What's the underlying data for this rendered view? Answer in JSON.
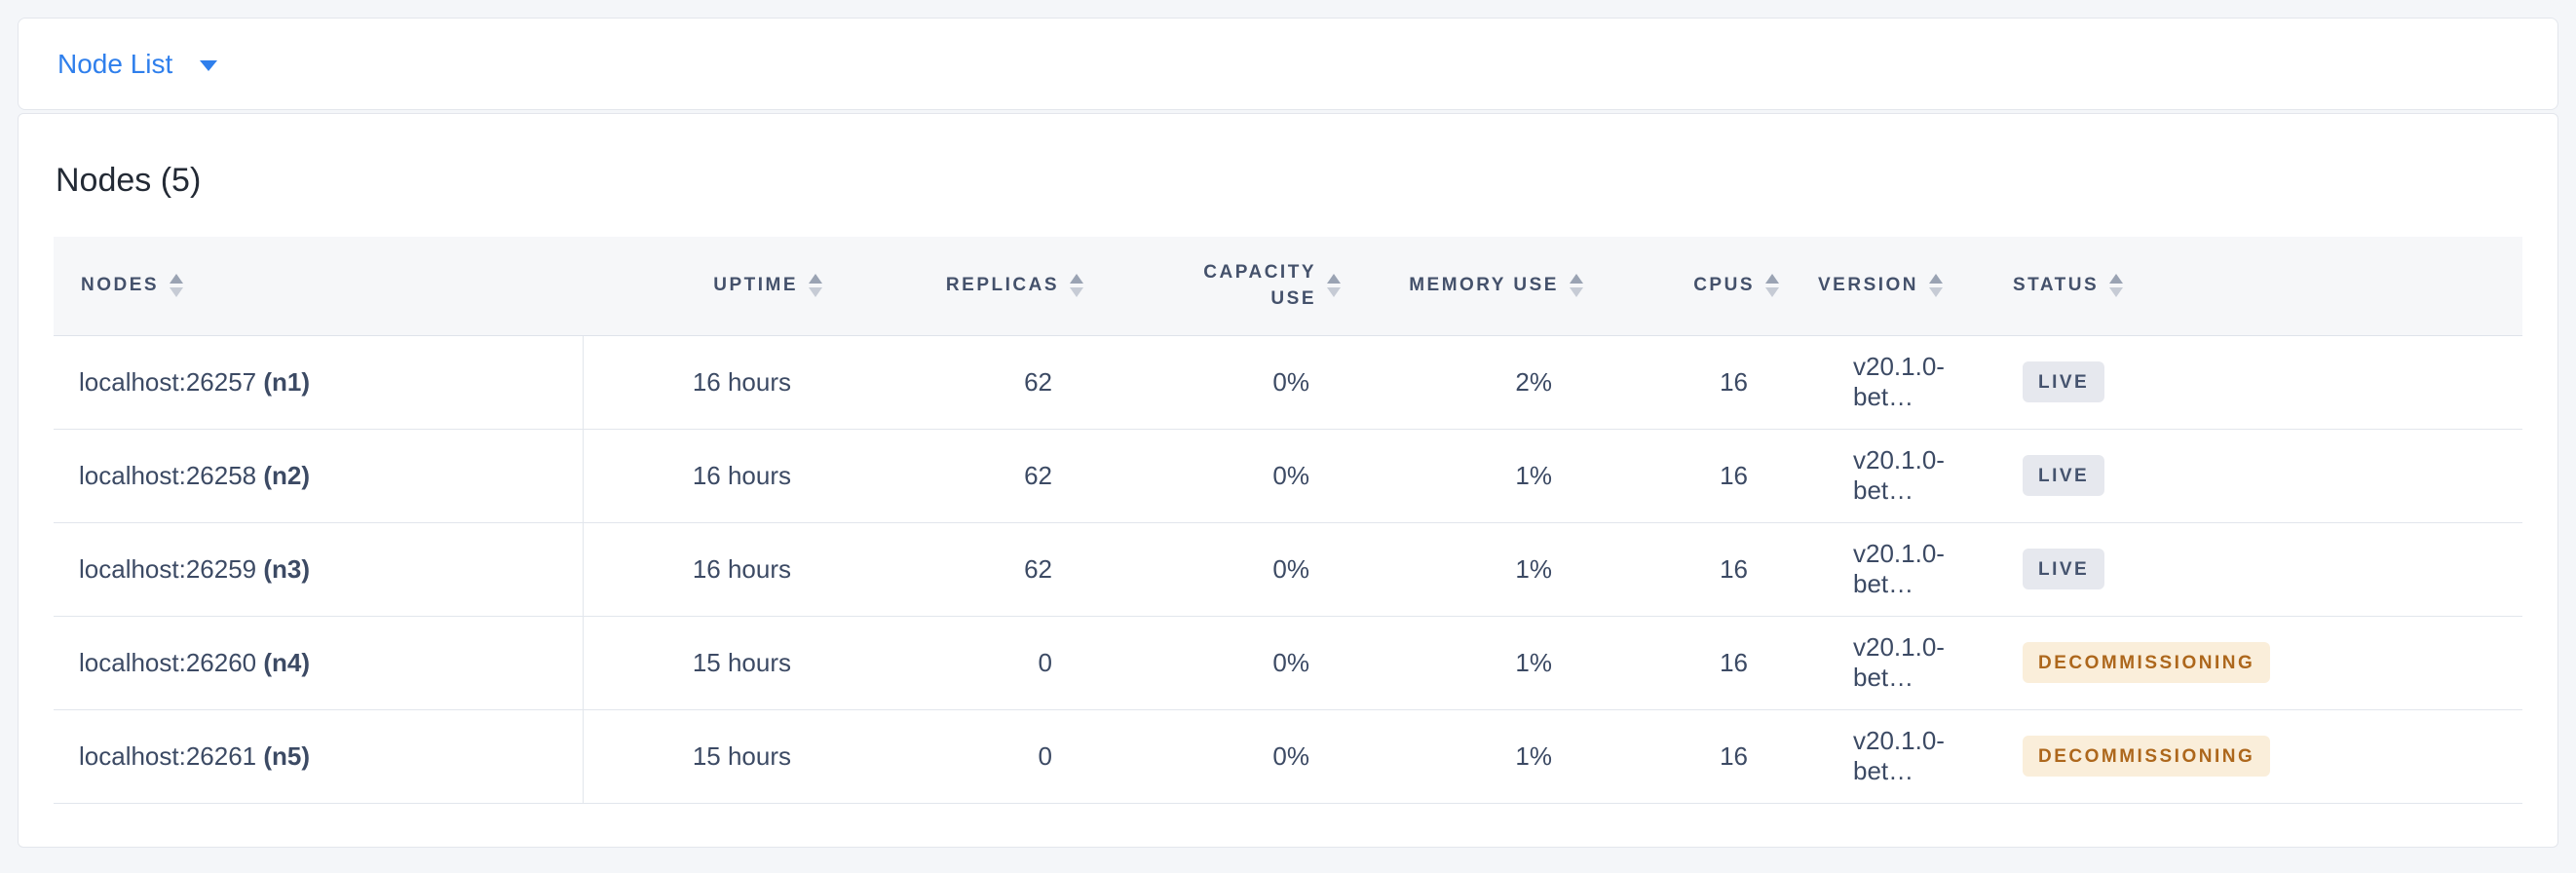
{
  "toolbar": {
    "view_selector_label": "Node List"
  },
  "panel": {
    "title": "Nodes (5)"
  },
  "table": {
    "columns": [
      {
        "key": "nodes",
        "label": "NODES",
        "align": "left"
      },
      {
        "key": "uptime",
        "label": "UPTIME",
        "align": "right"
      },
      {
        "key": "replicas",
        "label": "REPLICAS",
        "align": "right"
      },
      {
        "key": "capacity_use",
        "label": "CAPACITY USE",
        "align": "right"
      },
      {
        "key": "memory_use",
        "label": "MEMORY USE",
        "align": "right"
      },
      {
        "key": "cpus",
        "label": "CPUS",
        "align": "right"
      },
      {
        "key": "version",
        "label": "VERSION",
        "align": "left"
      },
      {
        "key": "status",
        "label": "STATUS",
        "align": "left"
      }
    ],
    "rows": [
      {
        "address": "localhost:26257",
        "node_id": "(n1)",
        "uptime": "16 hours",
        "replicas": "62",
        "capacity_use": "0%",
        "memory_use": "2%",
        "cpus": "16",
        "version": "v20.1.0-bet…",
        "status": "LIVE"
      },
      {
        "address": "localhost:26258",
        "node_id": "(n2)",
        "uptime": "16 hours",
        "replicas": "62",
        "capacity_use": "0%",
        "memory_use": "1%",
        "cpus": "16",
        "version": "v20.1.0-bet…",
        "status": "LIVE"
      },
      {
        "address": "localhost:26259",
        "node_id": "(n3)",
        "uptime": "16 hours",
        "replicas": "62",
        "capacity_use": "0%",
        "memory_use": "1%",
        "cpus": "16",
        "version": "v20.1.0-bet…",
        "status": "LIVE"
      },
      {
        "address": "localhost:26260",
        "node_id": "(n4)",
        "uptime": "15 hours",
        "replicas": "0",
        "capacity_use": "0%",
        "memory_use": "1%",
        "cpus": "16",
        "version": "v20.1.0-bet…",
        "status": "DECOMMISSIONING"
      },
      {
        "address": "localhost:26261",
        "node_id": "(n5)",
        "uptime": "15 hours",
        "replicas": "0",
        "capacity_use": "0%",
        "memory_use": "1%",
        "cpus": "16",
        "version": "v20.1.0-bet…",
        "status": "DECOMMISSIONING"
      }
    ]
  },
  "colors": {
    "accent": "#2f7fec",
    "page_bg": "#f4f6f9",
    "live_badge_bg": "#e6e8ee",
    "live_badge_fg": "#45536e",
    "decommissioning_badge_bg": "#faeeda",
    "decommissioning_badge_fg": "#ad671c"
  }
}
